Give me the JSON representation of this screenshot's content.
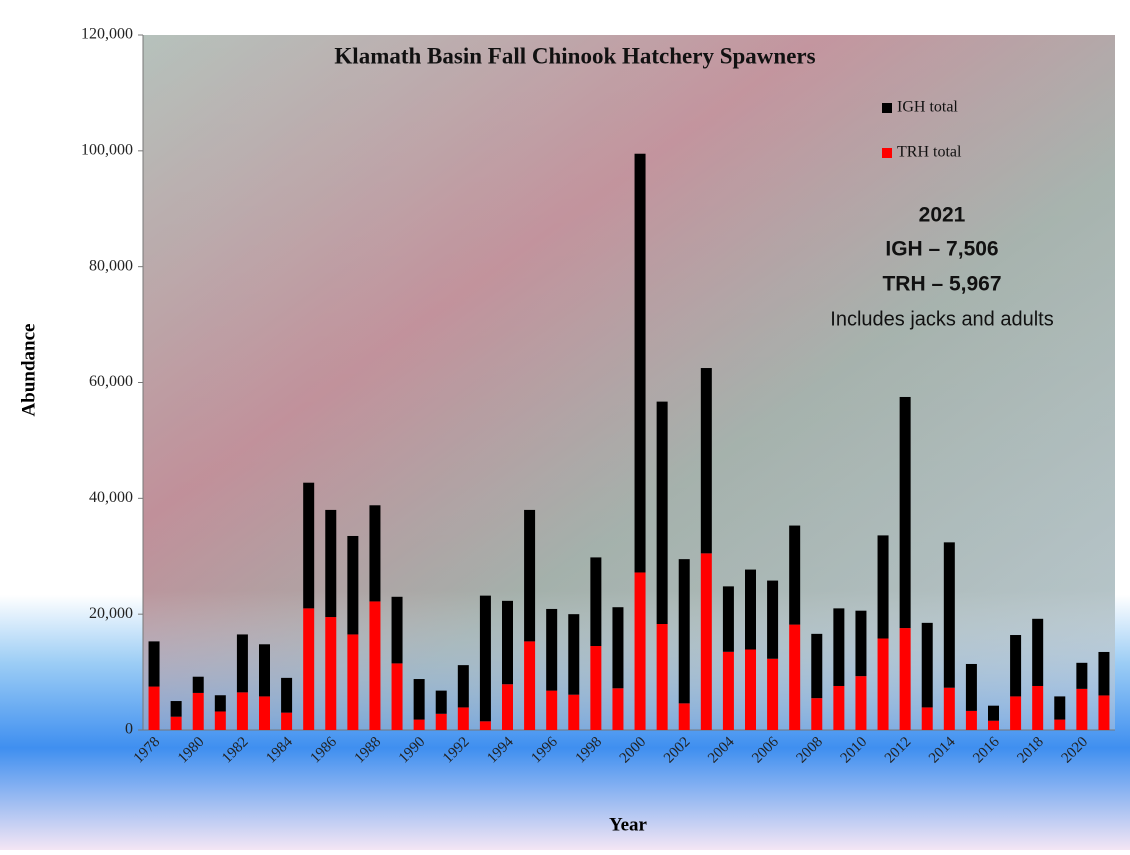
{
  "chart_data": {
    "type": "stacked-bar",
    "title": "Klamath Basin Fall Chinook Hatchery Spawners",
    "x_label": "Year",
    "y_label": "Abundance",
    "categories": [
      "1978",
      null,
      "1980",
      null,
      "1982",
      null,
      "1984",
      null,
      "1986",
      null,
      "1988",
      null,
      "1990",
      null,
      "1992",
      null,
      "1994",
      null,
      "1996",
      null,
      "1998",
      null,
      "2000",
      null,
      "2002",
      null,
      "2004",
      null,
      "2006",
      null,
      "2008",
      null,
      "2010",
      null,
      "2012",
      null,
      "2014",
      null,
      "2016",
      null,
      "2018",
      null,
      "2020",
      null
    ],
    "series": [
      {
        "name": "TRH total",
        "color": "#ff0000",
        "values": [
          7500,
          2300,
          6400,
          3200,
          6500,
          5800,
          3000,
          21000,
          19500,
          16500,
          22200,
          11500,
          1800,
          2800,
          3900,
          1500,
          7900,
          15300,
          6800,
          6100,
          14500,
          7200,
          27200,
          18300,
          4600,
          30500,
          13500,
          13900,
          12300,
          18200,
          5500,
          7600,
          9300,
          15800,
          17600,
          3900,
          7300,
          3300,
          1600,
          5800,
          7600,
          1800,
          7100,
          5967
        ]
      },
      {
        "name": "IGH total",
        "color": "#000000",
        "values": [
          7800,
          2700,
          2800,
          2800,
          10000,
          9000,
          6000,
          21700,
          18500,
          17000,
          16600,
          11500,
          7000,
          4000,
          7300,
          21700,
          14400,
          22700,
          14100,
          13900,
          15300,
          14000,
          72300,
          38400,
          24900,
          32000,
          11300,
          13800,
          13500,
          17100,
          11100,
          13400,
          11300,
          17800,
          39900,
          14600,
          25100,
          8100,
          2600,
          10600,
          11600,
          4000,
          4500,
          7506
        ]
      }
    ],
    "ylim": [
      0,
      120000
    ],
    "yticks": [
      0,
      {
        "value": 20000,
        "label": "20,000"
      },
      {
        "value": 40000,
        "label": "40,000"
      },
      {
        "value": 60000,
        "label": "60,000"
      },
      {
        "value": 80000,
        "label": "80,000"
      },
      {
        "value": 100000,
        "label": "100,000"
      },
      {
        "value": 120000,
        "label": "120,000"
      }
    ],
    "annotation": [
      "2021",
      "IGH – 7,506",
      "TRH – 5,967",
      "Includes jacks and adults"
    ]
  }
}
